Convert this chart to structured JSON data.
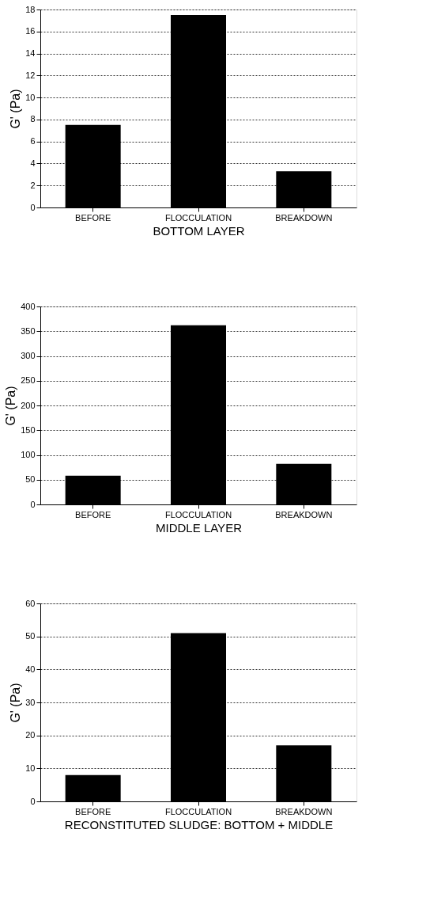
{
  "chart_data": [
    {
      "type": "bar",
      "categories": [
        "BEFORE",
        "FLOCCULATION",
        "BREAKDOWN"
      ],
      "values": [
        7.5,
        17.5,
        3.3
      ],
      "color": "#000000",
      "xlabel": "BOTTOM LAYER",
      "ylabel": "G' (Pa)",
      "ylim": [
        0,
        18
      ],
      "yticks": [
        0,
        2,
        4,
        6,
        8,
        10,
        12,
        14,
        16,
        18
      ],
      "grid": "y"
    },
    {
      "type": "bar",
      "categories": [
        "BEFORE",
        "FLOCCULATION",
        "BREAKDOWN"
      ],
      "values": [
        58,
        362,
        82
      ],
      "color": "#000000",
      "xlabel": "MIDDLE LAYER",
      "ylabel": "G' (Pa)",
      "ylim": [
        0,
        400
      ],
      "yticks": [
        0,
        50,
        100,
        150,
        200,
        250,
        300,
        350,
        400
      ],
      "grid": "y"
    },
    {
      "type": "bar",
      "categories": [
        "BEFORE",
        "FLOCCULATION",
        "BREAKDOWN"
      ],
      "values": [
        8,
        51,
        17
      ],
      "color": "#000000",
      "xlabel": "RECONSTITUTED SLUDGE: BOTTOM + MIDDLE",
      "ylabel": "G' (Pa)",
      "ylim": [
        0,
        60
      ],
      "yticks": [
        0,
        10,
        20,
        30,
        40,
        50,
        60
      ],
      "grid": "y"
    }
  ]
}
